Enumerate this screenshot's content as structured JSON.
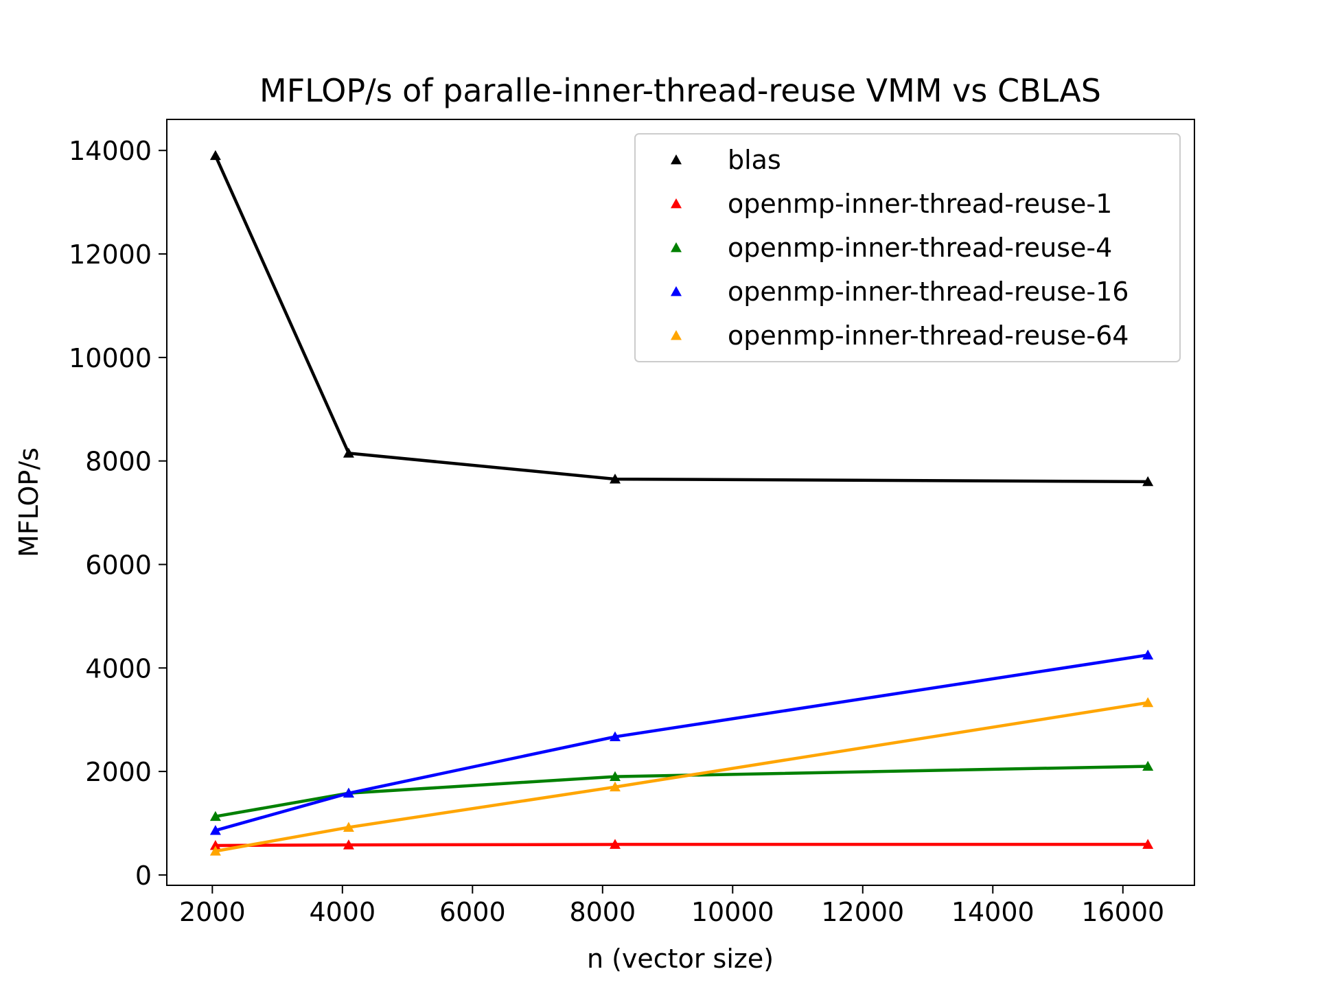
{
  "chart_data": {
    "type": "line",
    "title": "MFLOP/s of paralle-inner-thread-reuse VMM vs CBLAS",
    "xlabel": "n (vector size)",
    "ylabel": "MFLOP/s",
    "xlim": [
      1300,
      17100
    ],
    "ylim": [
      -200,
      14600
    ],
    "xticks": [
      2000,
      4000,
      6000,
      8000,
      10000,
      12000,
      14000,
      16000
    ],
    "yticks": [
      0,
      2000,
      4000,
      6000,
      8000,
      10000,
      12000,
      14000
    ],
    "grid": false,
    "legend_position": "top-right",
    "marker": "triangle",
    "x": [
      2048,
      4096,
      8192,
      16384
    ],
    "series": [
      {
        "name": "blas",
        "color": "#000000",
        "values": [
          13900,
          8150,
          7650,
          7600
        ]
      },
      {
        "name": "openmp-inner-thread-reuse-1",
        "color": "#ff0000",
        "values": [
          570,
          580,
          590,
          590
        ]
      },
      {
        "name": "openmp-inner-thread-reuse-4",
        "color": "#008000",
        "values": [
          1130,
          1580,
          1900,
          2100
        ]
      },
      {
        "name": "openmp-inner-thread-reuse-16",
        "color": "#0000ff",
        "values": [
          860,
          1580,
          2670,
          4250
        ]
      },
      {
        "name": "openmp-inner-thread-reuse-64",
        "color": "#ffa500",
        "values": [
          460,
          920,
          1700,
          3330
        ]
      }
    ]
  }
}
